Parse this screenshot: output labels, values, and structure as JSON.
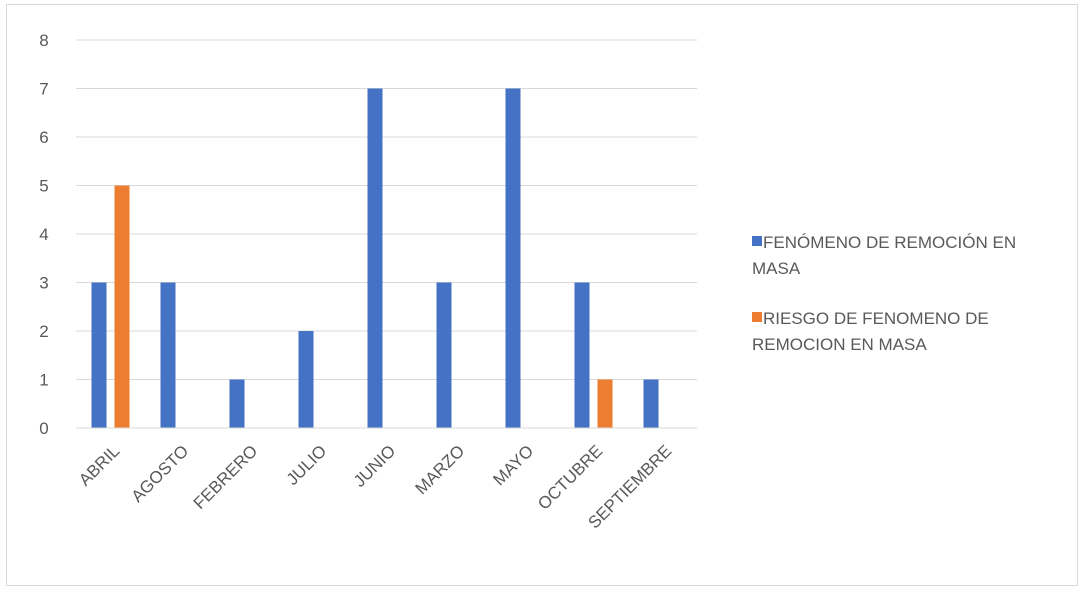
{
  "chart_data": {
    "type": "bar",
    "title": "",
    "xlabel": "",
    "ylabel": "",
    "ylim": [
      0,
      8
    ],
    "y_ticks": [
      "0",
      "1",
      "2",
      "3",
      "4",
      "5",
      "6",
      "7",
      "8"
    ],
    "categories": [
      "ABRIL",
      "AGOSTO",
      "FEBRERO",
      "JULIO",
      "JUNIO",
      "MARZO",
      "MAYO",
      "OCTUBRE",
      "SEPTIEMBRE"
    ],
    "grid": true,
    "legend_position": "right",
    "series": [
      {
        "name": "FENÓMENO DE REMOCIÓN EN MASA",
        "legend_lines": [
          "FENÓMENO DE REMOCIÓN EN",
          "MASA"
        ],
        "color": "#4472c4",
        "values": [
          3,
          3,
          1,
          2,
          7,
          3,
          7,
          3,
          1
        ]
      },
      {
        "name": "RIESGO DE FENOMENO DE REMOCION EN MASA",
        "legend_lines": [
          "RIESGO DE FENOMENO DE",
          "REMOCION EN MASA"
        ],
        "color": "#ed7d31",
        "values": [
          5,
          null,
          null,
          null,
          null,
          null,
          null,
          1,
          null
        ]
      }
    ]
  }
}
